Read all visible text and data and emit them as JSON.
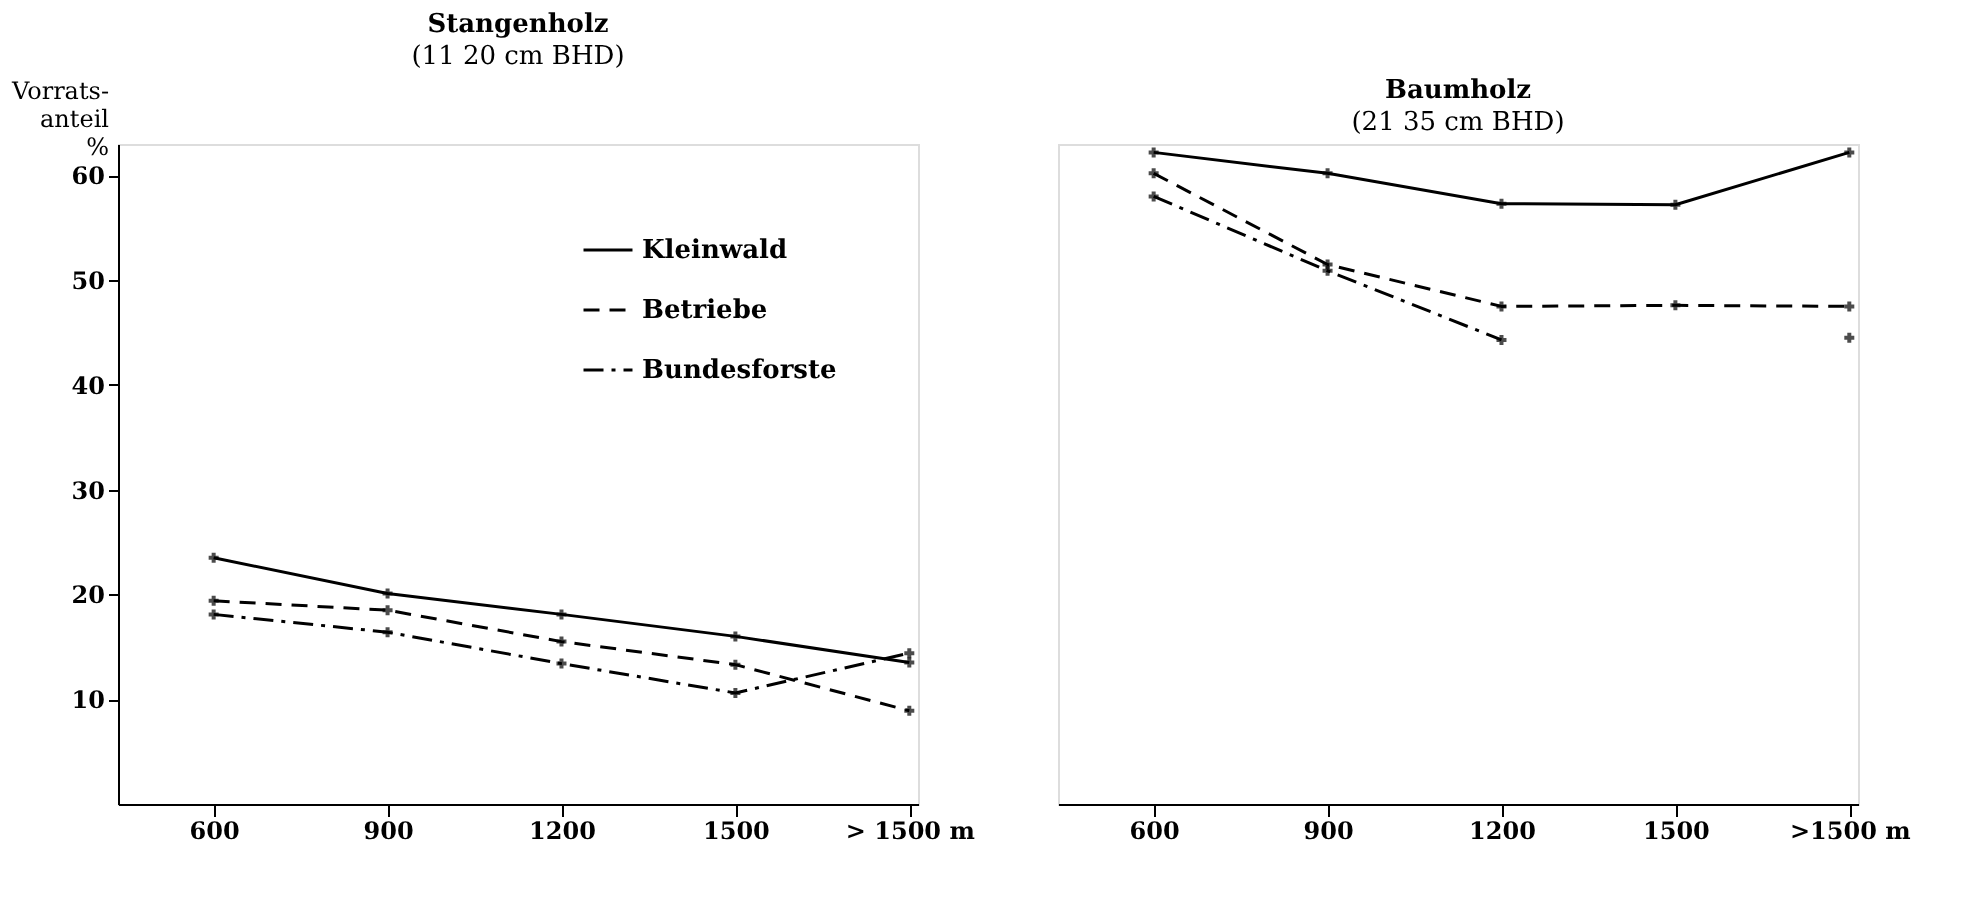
{
  "chart_data": [
    {
      "type": "line",
      "title": "Stangenholz",
      "subtitle": "(11 20 cm BHD)",
      "ylabel": "Vorrats-\nanteil\n\n%",
      "categories": [
        "600",
        "900",
        "1200",
        "1500",
        "> 1500 m"
      ],
      "ylim": [
        0,
        63
      ],
      "yticks": [
        10,
        20,
        30,
        40,
        50,
        60
      ],
      "grid": false,
      "legend": "top right",
      "marker": "cross",
      "series": [
        {
          "name": "Kleinwald",
          "color": "#000000",
          "line_style": "solid",
          "values": [
            23.5,
            20.1,
            18.1,
            16.0,
            13.5
          ]
        },
        {
          "name": "Betriebe",
          "color": "#000000",
          "line_style": "dashed",
          "values": [
            19.4,
            18.5,
            15.5,
            13.3,
            8.9
          ]
        },
        {
          "name": "Bundesforste",
          "color": "#000000",
          "line_style": "dashdot",
          "values": [
            18.1,
            16.4,
            13.4,
            10.6,
            14.4
          ]
        }
      ]
    },
    {
      "type": "line",
      "title": "Baumholz",
      "subtitle": "(21 35 cm BHD)",
      "categories": [
        "600",
        "900",
        "1200",
        "1500",
        ">1500 m"
      ],
      "ylim": [
        0,
        63
      ],
      "yticks": [
        10,
        20,
        30,
        40,
        50,
        60
      ],
      "tick_labels": "x",
      "grid": false,
      "legend": false,
      "marker": "cross",
      "series": [
        {
          "color": "#000000",
          "line_style": "solid",
          "values": [
            62.2,
            60.2,
            57.3,
            57.2,
            62.2
          ]
        },
        {
          "color": "#000000",
          "line_style": "dashed",
          "values": [
            60.2,
            51.5,
            47.5,
            47.6,
            47.5
          ]
        },
        {
          "color": "#000000",
          "line_style": "dashdot",
          "values": [
            58.0,
            50.9,
            44.3,
            null,
            44.5
          ]
        }
      ]
    }
  ]
}
